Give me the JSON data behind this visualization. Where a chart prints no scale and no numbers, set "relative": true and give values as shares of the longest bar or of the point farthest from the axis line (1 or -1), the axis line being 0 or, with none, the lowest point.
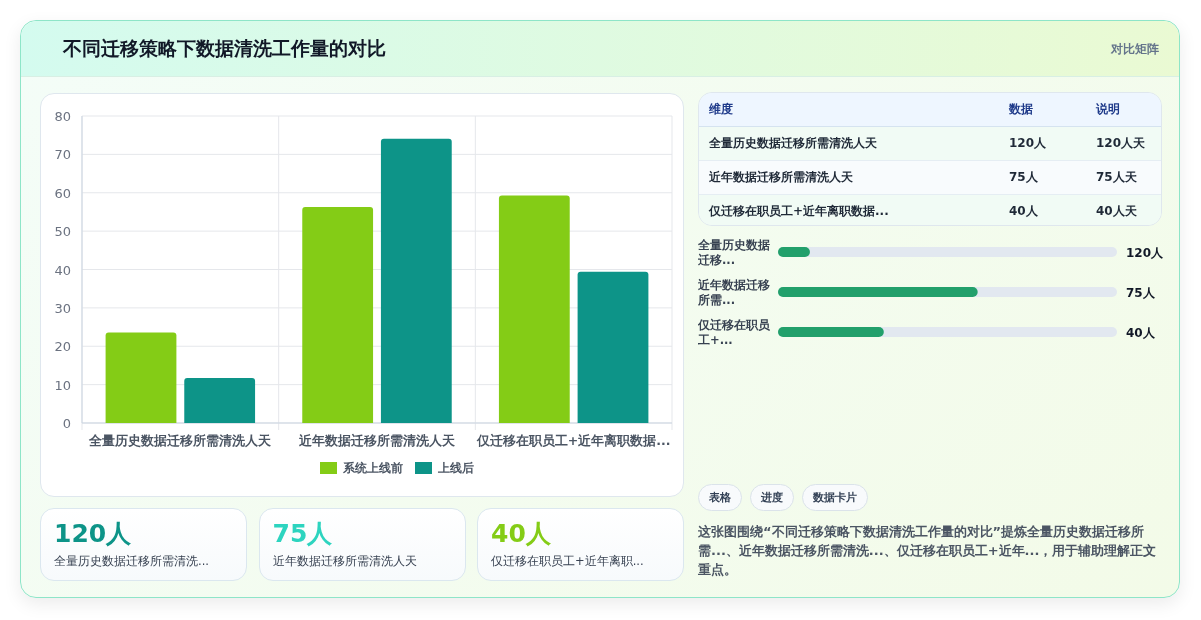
{
  "chart_data": [
    {
      "type": "other",
      "title": "不同迁移策略下数据清洗工作量的对比",
      "subtitle": "对比矩阵"
    },
    {
      "type": "bar",
      "categories": [
        "全量历史数据迁移所需清洗人天",
        "近年数据迁移所需清洗人天",
        "仅迁移在职员工+近年离职数据..."
      ],
      "series": [
        {
          "name": "系统上线前",
          "color": "#84cc16",
          "values": [
            23.6,
            56.3,
            59.3
          ]
        },
        {
          "name": "上线后",
          "color": "#0d9488",
          "values": [
            11.7,
            74.1,
            39.4
          ]
        }
      ],
      "ylim": [
        0,
        80
      ],
      "yticks": [
        0,
        10,
        20,
        30,
        40,
        50,
        60,
        70,
        80
      ],
      "grid": true,
      "legend": "bottom",
      "annotations": [
        "这张图围绕“不同迁移策略下数据清洗工作量的对比”提炼全量历史数据迁移所需...、近年数据迁移所需清洗...、仅迁移在职员工+近年...，用于辅助理解正文重点。"
      ]
    },
    {
      "type": "other",
      "categories": [
        "维度",
        "数据",
        "说明"
      ],
      "y_categories": [
        "全量历史数据迁移所需清洗人天",
        "近年数据迁移所需清洗人天",
        "仅迁移在职员工+近年离职数据..."
      ],
      "cell_labels": [
        [
          "120人",
          "120人天"
        ],
        [
          "75人",
          "75人天"
        ],
        [
          "40人",
          "40人天"
        ]
      ]
    },
    {
      "type": "bar",
      "orientation": "horizontal",
      "relative": true,
      "categories": [
        "全量历史数据迁移...",
        "近年数据迁移所需...",
        "仅迁移在职员工+..."
      ],
      "series": [
        {
          "color": "#22a06b",
          "values": [
            0.16,
            1,
            0.53
          ]
        }
      ],
      "annotations": [
        "120人",
        "75人",
        "40人"
      ]
    },
    {
      "type": "other",
      "annotations": [
        "120人",
        "全量历史数据迁移所需清洗...",
        "75人",
        "近年数据迁移所需清洗人天",
        "40人",
        "仅迁移在职员工+近年离职..."
      ],
      "colors": [
        "#0d9488",
        "#2dd4bf",
        "#84cc16"
      ]
    },
    {
      "type": "other",
      "annotations": [
        "表格",
        "进度",
        "数据卡片"
      ]
    }
  ]
}
